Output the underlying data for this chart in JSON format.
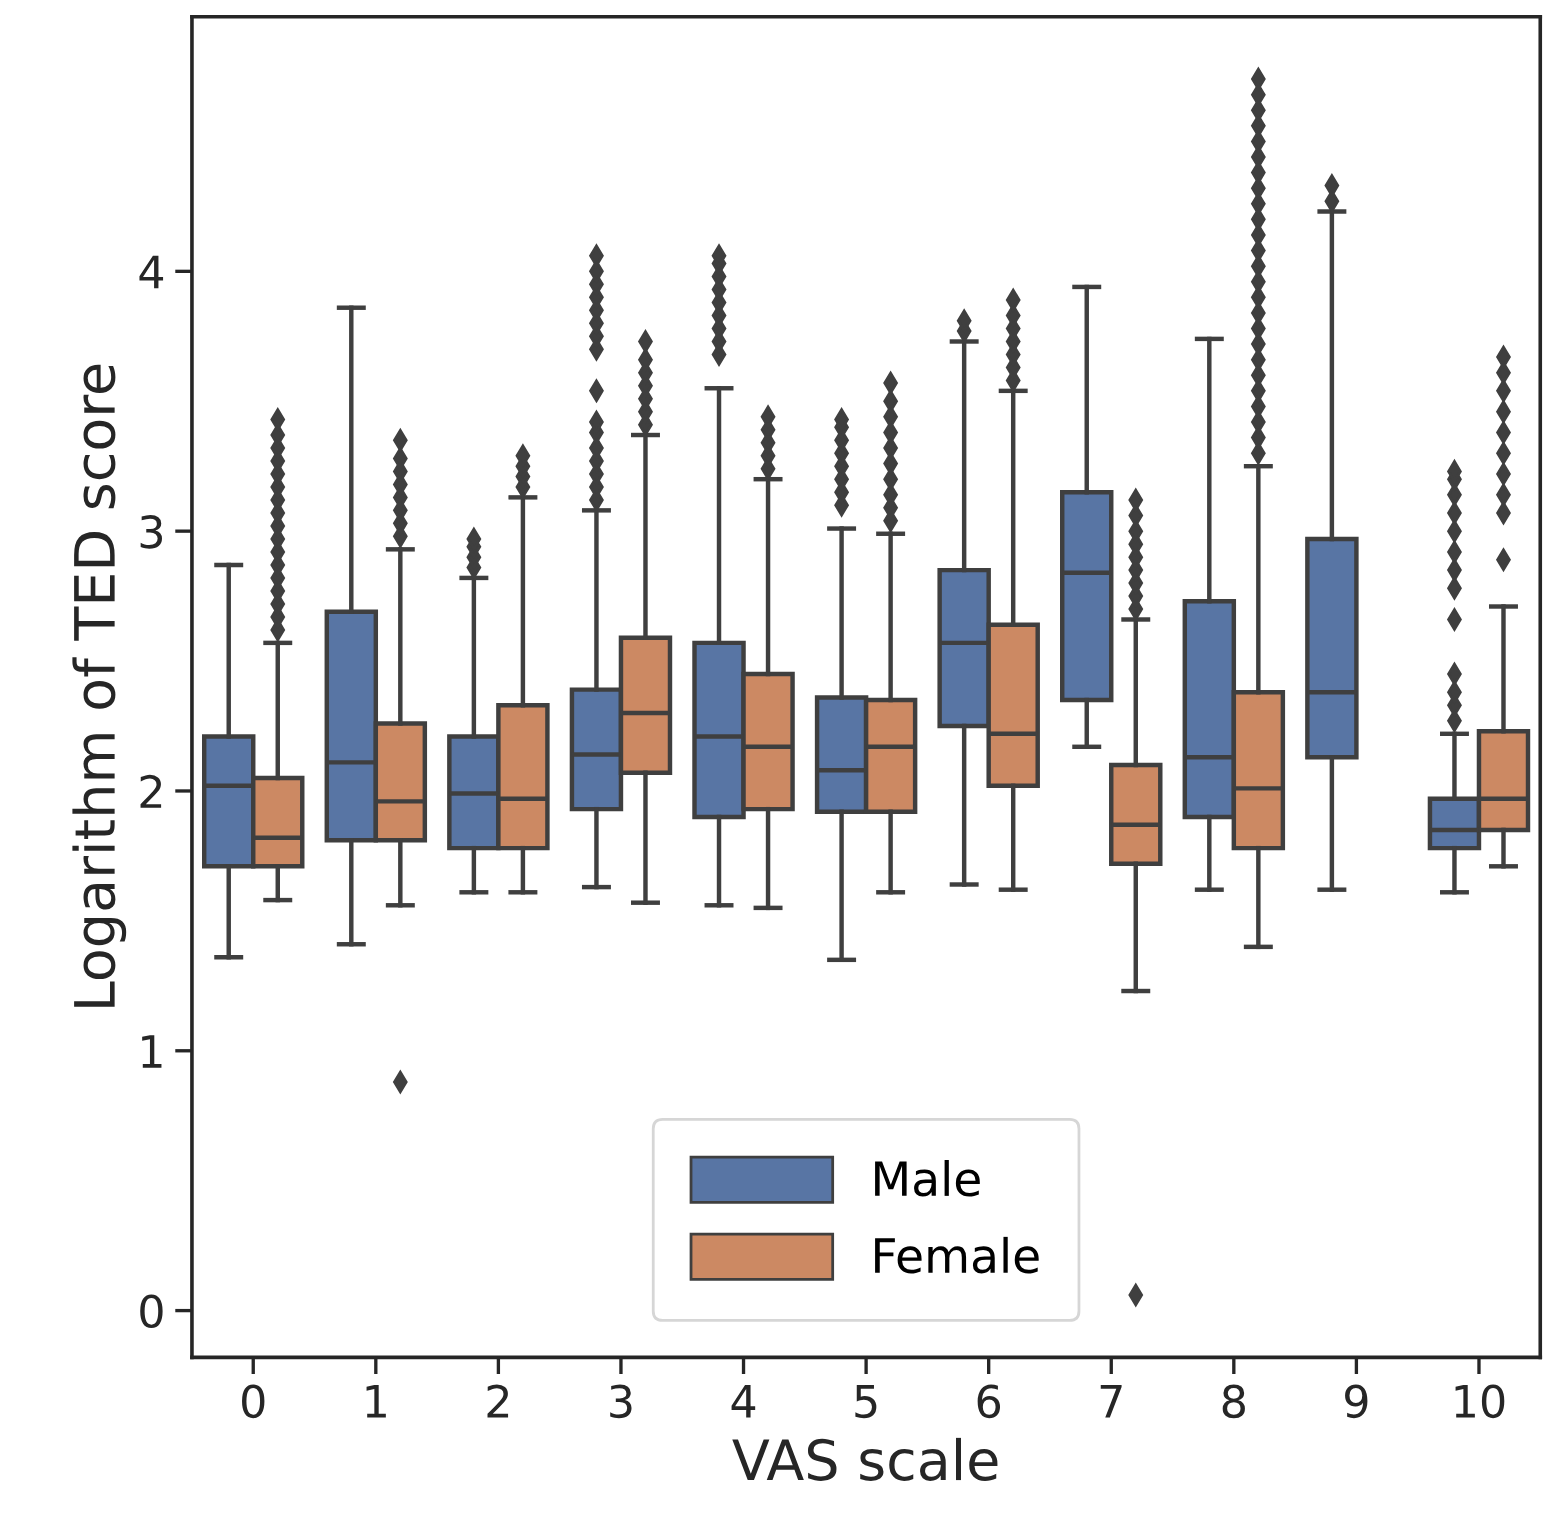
{
  "chart_data": {
    "type": "box",
    "xlabel": "VAS scale",
    "ylabel": "Logarithm of TED score",
    "categories": [
      "0",
      "1",
      "2",
      "3",
      "4",
      "5",
      "6",
      "7",
      "8",
      "9",
      "10"
    ],
    "ylim": [
      -0.18,
      4.98
    ],
    "yticks": [
      0,
      1,
      2,
      3,
      4
    ],
    "grid": false,
    "legend": "bottom",
    "marker": "diamond",
    "series": [
      {
        "name": "Male",
        "color": "#5875a4",
        "boxes": [
          {
            "low": 1.36,
            "q1": 1.71,
            "median": 2.02,
            "q3": 2.21,
            "high": 2.87
          },
          {
            "low": 1.41,
            "q1": 1.81,
            "median": 2.11,
            "q3": 2.69,
            "high": 3.86
          },
          {
            "low": 1.61,
            "q1": 1.78,
            "median": 1.99,
            "q3": 2.21,
            "high": 2.82,
            "outliers": [
              2.86,
              2.9,
              2.94,
              2.97
            ]
          },
          {
            "low": 1.63,
            "q1": 1.93,
            "median": 2.14,
            "q3": 2.39,
            "high": 3.08,
            "outliers": [
              3.12,
              3.17,
              3.22,
              3.27,
              3.32,
              3.38,
              3.42,
              3.54,
              3.7,
              3.75,
              3.8,
              3.85,
              3.9,
              3.95,
              4.0,
              4.06
            ]
          },
          {
            "low": 1.56,
            "q1": 1.9,
            "median": 2.21,
            "q3": 2.57,
            "high": 3.55,
            "outliers": [
              3.68,
              3.73,
              3.78,
              3.83,
              3.88,
              3.93,
              3.98,
              4.03,
              4.06
            ]
          },
          {
            "low": 1.35,
            "q1": 1.92,
            "median": 2.08,
            "q3": 2.36,
            "high": 3.01,
            "outliers": [
              3.1,
              3.15,
              3.2,
              3.25,
              3.3,
              3.35,
              3.4,
              3.43
            ]
          },
          {
            "low": 1.64,
            "q1": 2.25,
            "median": 2.57,
            "q3": 2.85,
            "high": 3.73,
            "outliers": [
              3.77,
              3.81
            ]
          },
          {
            "low": 2.17,
            "q1": 2.35,
            "median": 2.84,
            "q3": 3.15,
            "high": 3.94
          },
          {
            "low": 1.62,
            "q1": 1.9,
            "median": 2.13,
            "q3": 2.73,
            "high": 3.74
          },
          {
            "low": 1.62,
            "q1": 2.13,
            "median": 2.38,
            "q3": 2.97,
            "high": 4.23,
            "outliers": [
              4.27,
              4.33
            ]
          },
          {
            "low": 1.61,
            "q1": 1.78,
            "median": 1.85,
            "q3": 1.97,
            "high": 2.22,
            "outliers": [
              2.27,
              2.33,
              2.38,
              2.45,
              2.66,
              2.78,
              2.85,
              2.92,
              3.0,
              3.07,
              3.14,
              3.2,
              3.23
            ]
          }
        ]
      },
      {
        "name": "Female",
        "color": "#cc8963",
        "boxes": [
          {
            "low": 1.58,
            "q1": 1.71,
            "median": 1.82,
            "q3": 2.05,
            "high": 2.57,
            "outliers": [
              2.62,
              2.67,
              2.72,
              2.77,
              2.82,
              2.87,
              2.92,
              2.97,
              3.02,
              3.07,
              3.12,
              3.17,
              3.22,
              3.27,
              3.32,
              3.37,
              3.43
            ]
          },
          {
            "low": 1.56,
            "q1": 1.81,
            "median": 1.96,
            "q3": 2.26,
            "high": 2.93,
            "outliers": [
              0.88,
              2.98,
              3.03,
              3.08,
              3.13,
              3.18,
              3.23,
              3.28,
              3.35
            ]
          },
          {
            "low": 1.61,
            "q1": 1.78,
            "median": 1.97,
            "q3": 2.33,
            "high": 3.13,
            "outliers": [
              3.17,
              3.21,
              3.25,
              3.29
            ]
          },
          {
            "low": 1.57,
            "q1": 2.07,
            "median": 2.3,
            "q3": 2.59,
            "high": 3.37,
            "outliers": [
              3.41,
              3.46,
              3.51,
              3.56,
              3.61,
              3.66,
              3.73
            ]
          },
          {
            "low": 1.55,
            "q1": 1.93,
            "median": 2.17,
            "q3": 2.45,
            "high": 3.2,
            "outliers": [
              3.24,
              3.29,
              3.34,
              3.39,
              3.44
            ]
          },
          {
            "low": 1.61,
            "q1": 1.92,
            "median": 2.17,
            "q3": 2.35,
            "high": 2.99,
            "outliers": [
              3.04,
              3.09,
              3.14,
              3.2,
              3.26,
              3.32,
              3.38,
              3.44,
              3.5,
              3.57
            ]
          },
          {
            "low": 1.62,
            "q1": 2.02,
            "median": 2.22,
            "q3": 2.64,
            "high": 3.54,
            "outliers": [
              3.58,
              3.63,
              3.68,
              3.73,
              3.78,
              3.83,
              3.89
            ]
          },
          {
            "low": 1.23,
            "q1": 1.72,
            "median": 1.87,
            "q3": 2.1,
            "high": 2.66,
            "outliers": [
              0.06,
              2.7,
              2.75,
              2.8,
              2.85,
              2.9,
              2.95,
              3.0,
              3.06,
              3.12
            ]
          },
          {
            "low": 1.4,
            "q1": 1.78,
            "median": 2.01,
            "q3": 2.38,
            "high": 3.25,
            "outliers": [
              3.3,
              3.36,
              3.42,
              3.48,
              3.54,
              3.6,
              3.66,
              3.72,
              3.78,
              3.84,
              3.9,
              3.96,
              4.02,
              4.08,
              4.14,
              4.2,
              4.26,
              4.32,
              4.38,
              4.44,
              4.5,
              4.56,
              4.62,
              4.68,
              4.74
            ]
          },
          null,
          {
            "low": 1.71,
            "q1": 1.85,
            "median": 1.97,
            "q3": 2.23,
            "high": 2.71,
            "outliers": [
              2.89,
              3.07,
              3.14,
              3.22,
              3.3,
              3.38,
              3.46,
              3.54,
              3.61,
              3.67
            ]
          }
        ]
      }
    ]
  }
}
